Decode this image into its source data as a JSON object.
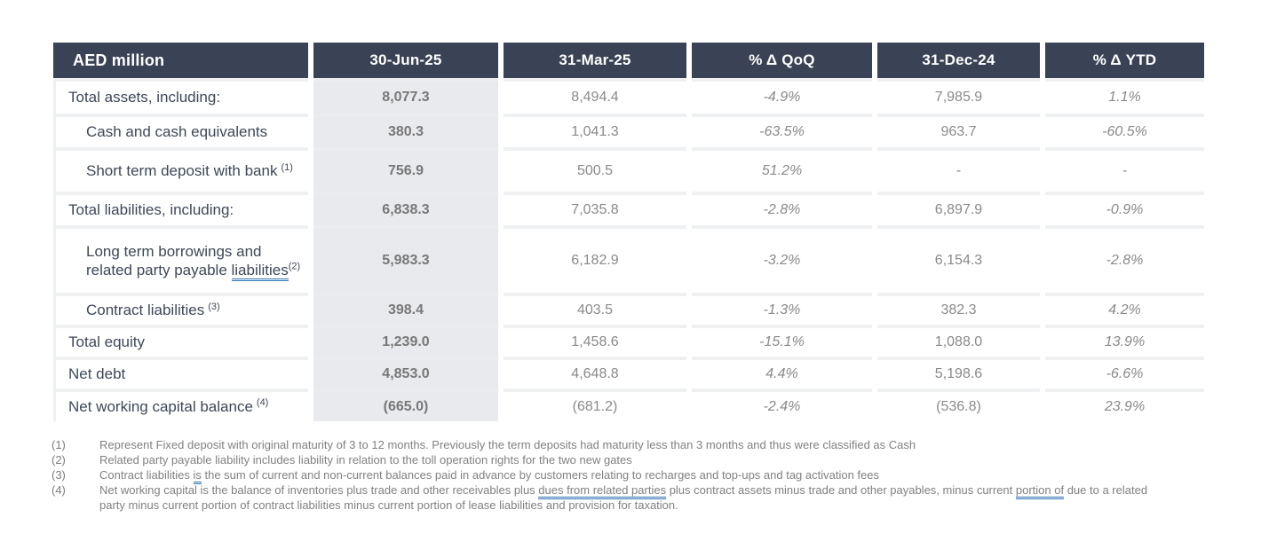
{
  "table": {
    "columns": [
      "AED million",
      "30-Jun-25",
      "31-Mar-25",
      "% Δ QoQ",
      "31-Dec-24",
      "% Δ YTD"
    ],
    "rows": [
      {
        "label": "Total assets, including:",
        "sup": "",
        "values": [
          "8,077.3",
          "8,494.4",
          "-4.9%",
          "7,985.9",
          "1.1%"
        ]
      },
      {
        "label": "Cash and cash equivalents",
        "sup": "",
        "values": [
          "380.3",
          "1,041.3",
          "-63.5%",
          "963.7",
          "-60.5%"
        ]
      },
      {
        "label": "Short term deposit with bank",
        "sup": "(1)",
        "values": [
          "756.9",
          "500.5",
          "51.2%",
          "-",
          "-"
        ]
      },
      {
        "label": "Total liabilities, including:",
        "sup": "",
        "values": [
          "6,838.3",
          "7,035.8",
          "-2.8%",
          "6,897.9",
          "-0.9%"
        ]
      },
      {
        "label": "Long term borrowings and related party payable ",
        "label_u": "liabilities",
        "sup": "(2)",
        "values": [
          "5,983.3",
          "6,182.9",
          "-3.2%",
          "6,154.3",
          "-2.8%"
        ]
      },
      {
        "label": "Contract liabilities",
        "sup": "(3)",
        "values": [
          "398.4",
          "403.5",
          "-1.3%",
          "382.3",
          "4.2%"
        ]
      },
      {
        "label": "Total equity",
        "sup": "",
        "values": [
          "1,239.0",
          "1,458.6",
          "-15.1%",
          "1,088.0",
          "13.9%"
        ]
      },
      {
        "label": "Net debt",
        "sup": "",
        "values": [
          "4,853.0",
          "4,648.8",
          "4.4%",
          "5,198.6",
          "-6.6%"
        ]
      },
      {
        "label": "Net working capital balance",
        "sup": "(4)",
        "values": [
          "(665.0)",
          "(681.2)",
          "-2.4%",
          "(536.8)",
          "23.9%"
        ]
      }
    ]
  },
  "footnotes": [
    {
      "marker": "(1)",
      "text": "Represent Fixed deposit with original maturity of 3 to 12 months. Previously the term deposits had maturity less than 3 months and thus were classified as Cash"
    },
    {
      "marker": "(2)",
      "text": "Related party payable liability includes liability in relation to the toll operation rights for the two new gates"
    },
    {
      "marker": "(3)",
      "pre": "Contract liabilities ",
      "u1": "is",
      "post": " the sum of current and non-current balances paid in advance by customers relating to recharges and top-ups and tag activation fees"
    },
    {
      "marker": "(4)",
      "s1": "Net working capital is the balance of inventories plus trade and other receivables plus ",
      "u1": "dues from related parties",
      "s2": " plus contract assets minus trade and other payables, minus current ",
      "u2": "portion of",
      "s3": " due to a related party minus current portion of contract liabilities minus current portion of lease liabilities and provision for taxation."
    }
  ]
}
